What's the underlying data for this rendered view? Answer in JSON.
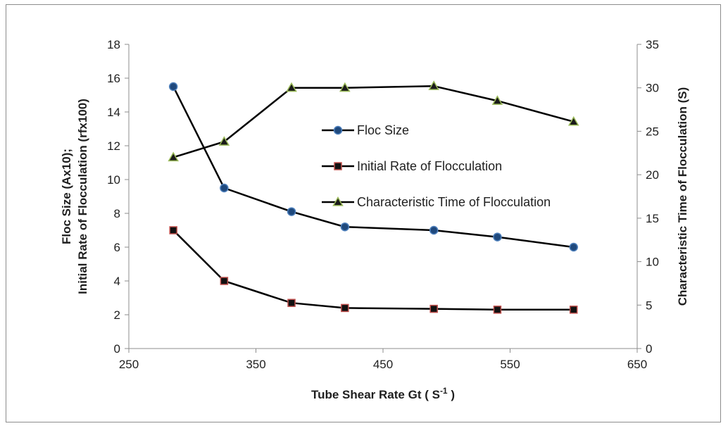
{
  "chart_data": {
    "type": "line",
    "x": [
      285,
      325,
      378,
      420,
      490,
      540,
      600
    ],
    "series": [
      {
        "name": "Floc Size",
        "axis": "left",
        "marker": "circle",
        "fill": "#1f497d",
        "stroke": "#4f81bd",
        "values": [
          15.5,
          9.5,
          8.1,
          7.2,
          7.0,
          6.6,
          6.0
        ]
      },
      {
        "name": "Initial Rate of Flocculation",
        "axis": "left",
        "marker": "square",
        "fill": "#111111",
        "stroke": "#c0504d",
        "values": [
          7.0,
          4.0,
          2.7,
          2.4,
          2.35,
          2.3,
          2.3
        ]
      },
      {
        "name": "Characteristic Time of Flocculation",
        "axis": "right",
        "marker": "triangle",
        "fill": "#1a1a1a",
        "stroke": "#9bbb59",
        "values": [
          22.0,
          23.8,
          30.0,
          30.0,
          30.2,
          28.5,
          26.1
        ]
      }
    ],
    "xlim": [
      250,
      650
    ],
    "xticks": [
      250,
      350,
      450,
      550,
      650
    ],
    "ylim_left": [
      0,
      18
    ],
    "yticks_left": [
      0,
      2,
      4,
      6,
      8,
      10,
      12,
      14,
      16,
      18
    ],
    "ylim_right": [
      0,
      35
    ],
    "yticks_right": [
      0,
      5,
      10,
      15,
      20,
      25,
      30,
      35
    ],
    "xlabel_main": "Tube Shear Rate Gt ( S",
    "xlabel_sup": "-1",
    "xlabel_end": " )",
    "ylabel_left_line1": "Floc Size (Ax10);",
    "ylabel_left_line2": "Initial Rate of Flocculation (rfx100)",
    "ylabel_right": "Characteristic Time of Flocculation (S)",
    "grid": false,
    "legend_position": "inside-right",
    "line_color": "#000000"
  }
}
